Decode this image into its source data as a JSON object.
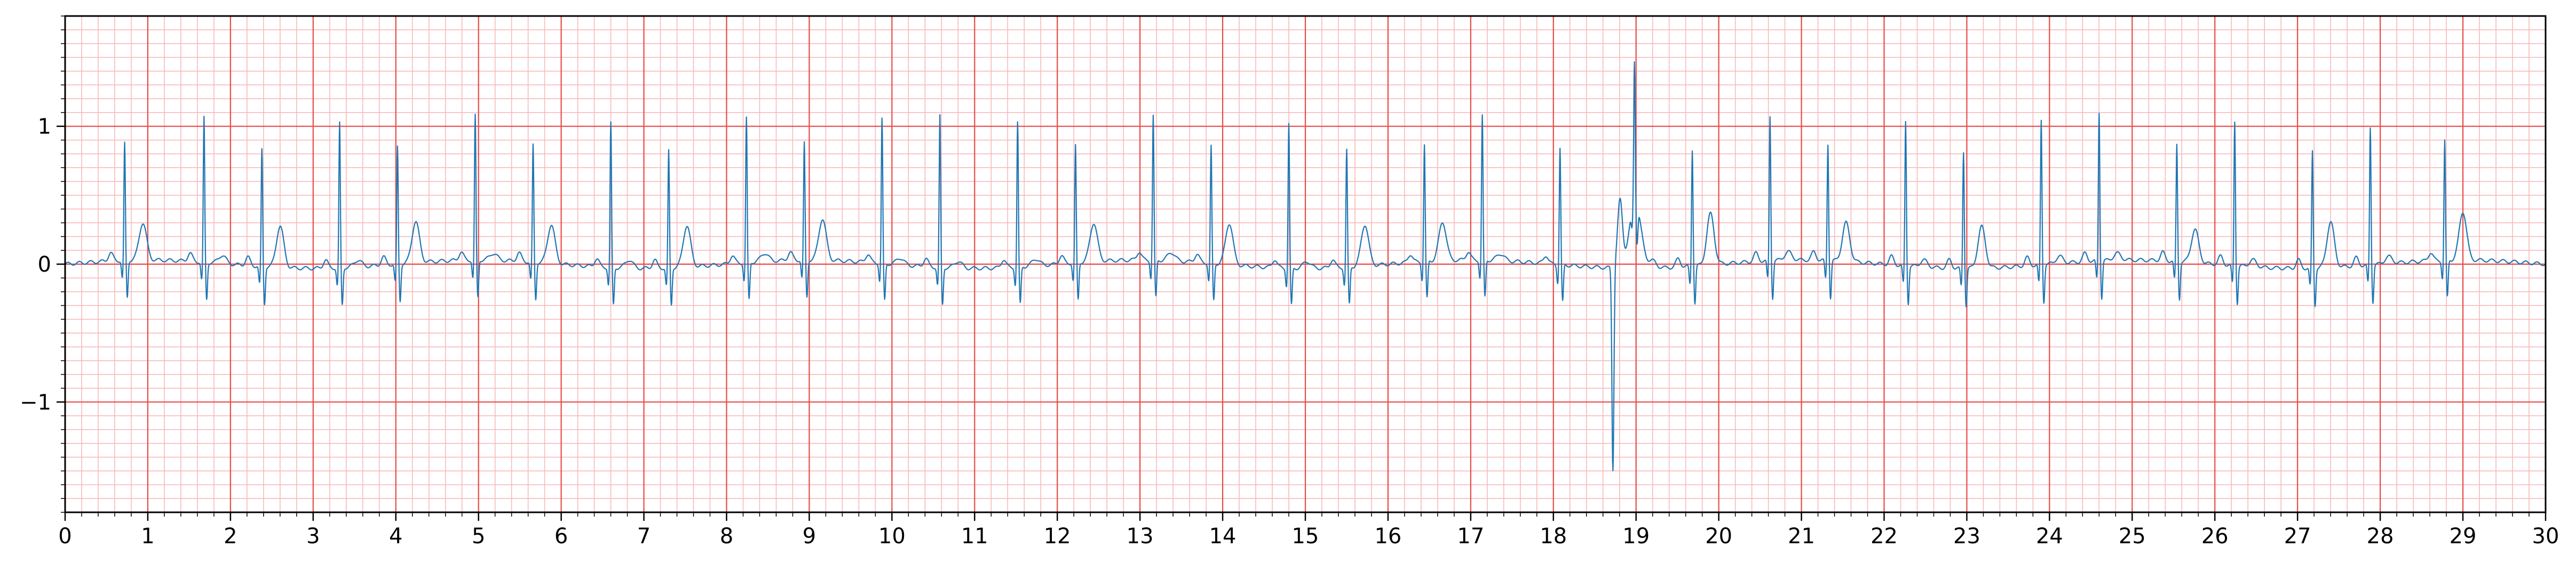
{
  "chart_data": {
    "type": "line",
    "title": "",
    "xlabel": "",
    "ylabel": "",
    "xlim": [
      0,
      30
    ],
    "ylim": [
      -1.8,
      1.8
    ],
    "grid": true,
    "x_major_ticks": [
      0,
      1,
      2,
      3,
      4,
      5,
      6,
      7,
      8,
      9,
      10,
      11,
      12,
      13,
      14,
      15,
      16,
      17,
      18,
      19,
      20,
      21,
      22,
      23,
      24,
      25,
      26,
      27,
      28,
      29,
      30
    ],
    "x_tick_labels": [
      "0",
      "1",
      "2",
      "3",
      "4",
      "5",
      "6",
      "7",
      "8",
      "9",
      "10",
      "11",
      "12",
      "13",
      "14",
      "15",
      "16",
      "17",
      "18",
      "19",
      "20",
      "21",
      "22",
      "23",
      "24",
      "25",
      "26",
      "27",
      "28",
      "29",
      "30"
    ],
    "y_major_ticks": [
      -1,
      0,
      1
    ],
    "y_tick_labels": [
      "−1",
      "0",
      "1"
    ],
    "x_minor_step": 0.2,
    "y_minor_step": 0.1,
    "series": [
      {
        "name": "",
        "color": "#1f77b4",
        "beats": [
          {
            "t": 0.72,
            "amp": 0.85,
            "t_amp": 0.27
          },
          {
            "t": 1.68,
            "amp": 1.05,
            "t_amp": 0.06
          },
          {
            "t": 2.38,
            "amp": 0.85,
            "t_amp": 0.3
          },
          {
            "t": 3.32,
            "amp": 1.05,
            "t_amp": 0.05
          },
          {
            "t": 4.02,
            "amp": 0.85,
            "t_amp": 0.3
          },
          {
            "t": 4.96,
            "amp": 1.05,
            "t_amp": 0.05
          },
          {
            "t": 5.66,
            "amp": 0.85,
            "t_amp": 0.28
          },
          {
            "t": 6.6,
            "amp": 1.05,
            "t_amp": 0.06
          },
          {
            "t": 7.3,
            "amp": 0.85,
            "t_amp": 0.3
          },
          {
            "t": 8.24,
            "amp": 1.05,
            "t_amp": 0.06
          },
          {
            "t": 8.94,
            "amp": 0.85,
            "t_amp": 0.3
          },
          {
            "t": 9.88,
            "amp": 1.05,
            "t_amp": 0.05
          },
          {
            "t": 10.58,
            "amp": 1.1,
            "t_amp": 0.05
          },
          {
            "t": 11.52,
            "amp": 1.05,
            "t_amp": 0.05
          },
          {
            "t": 12.22,
            "amp": 0.85,
            "t_amp": 0.28
          },
          {
            "t": 13.16,
            "amp": 1.05,
            "t_amp": 0.06
          },
          {
            "t": 13.86,
            "amp": 0.85,
            "t_amp": 0.3
          },
          {
            "t": 14.8,
            "amp": 1.05,
            "t_amp": 0.05
          },
          {
            "t": 15.5,
            "amp": 0.85,
            "t_amp": 0.3
          },
          {
            "t": 16.44,
            "amp": 0.85,
            "t_amp": 0.28
          },
          {
            "t": 17.14,
            "amp": 1.05,
            "t_amp": 0.05
          },
          {
            "t": 18.08,
            "amp": 0.85,
            "t_amp": 0.0
          },
          {
            "t": 18.98,
            "amp": 1.03,
            "t_amp": 0.05
          },
          {
            "t": 19.68,
            "amp": 0.85,
            "t_amp": 0.37
          },
          {
            "t": 20.62,
            "amp": 1.05,
            "t_amp": 0.06
          },
          {
            "t": 21.32,
            "amp": 0.85,
            "t_amp": 0.28
          },
          {
            "t": 22.26,
            "amp": 1.05,
            "t_amp": 0.05
          },
          {
            "t": 22.96,
            "amp": 0.85,
            "t_amp": 0.3
          },
          {
            "t": 23.9,
            "amp": 1.05,
            "t_amp": 0.05
          },
          {
            "t": 24.6,
            "amp": 1.08,
            "t_amp": 0.05
          },
          {
            "t": 25.54,
            "amp": 0.85,
            "t_amp": 0.24
          },
          {
            "t": 26.24,
            "amp": 1.05,
            "t_amp": 0.05
          },
          {
            "t": 27.18,
            "amp": 0.85,
            "t_amp": 0.33
          },
          {
            "t": 27.88,
            "amp": 1.0,
            "t_amp": 0.05
          },
          {
            "t": 28.78,
            "amp": 0.87,
            "t_amp": 0.35
          }
        ],
        "ectopic_beat": {
          "t": 18.72,
          "min": -1.52,
          "max": 0.83
        }
      }
    ]
  }
}
